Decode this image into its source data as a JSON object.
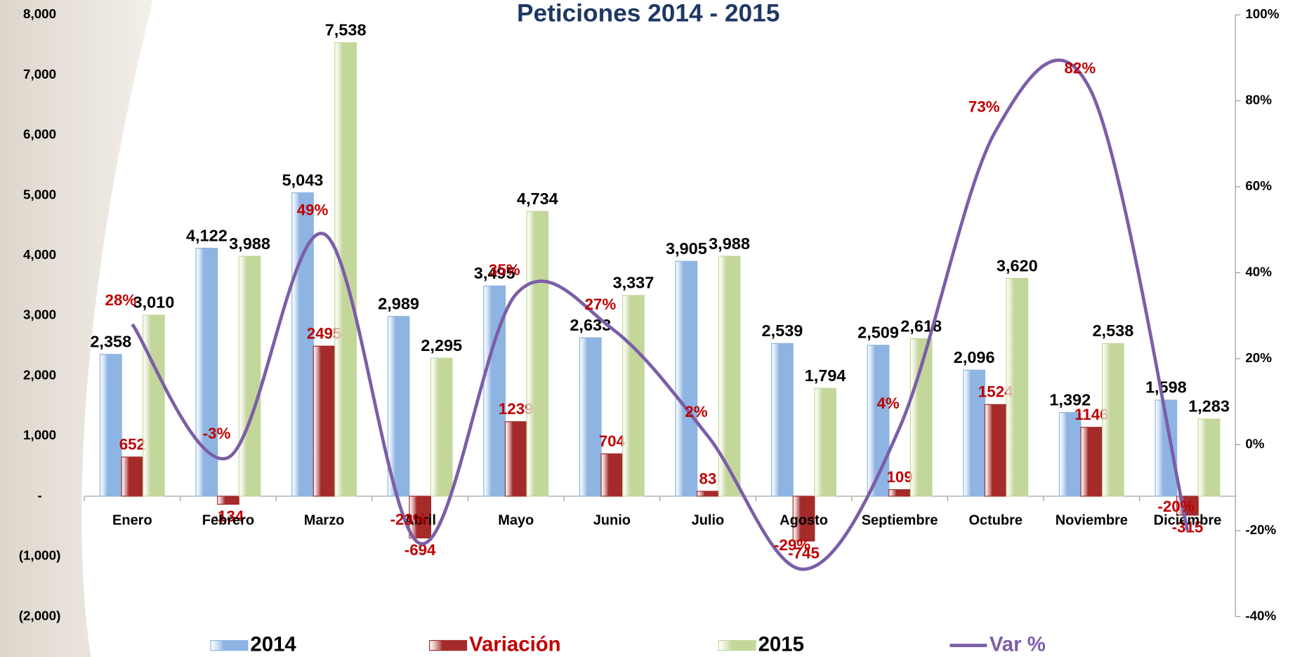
{
  "chart_data": {
    "type": "bar",
    "title": "Peticiones 2014 - 2015",
    "categories": [
      "Enero",
      "Febrero",
      "Marzo",
      "Abril",
      "Mayo",
      "Junio",
      "Julio",
      "Agosto",
      "Septiembre",
      "Octubre",
      "Noviembre",
      "Diciembre"
    ],
    "series": [
      {
        "name": "2014",
        "color": "#8db4e2",
        "values": [
          2358,
          4122,
          5043,
          2989,
          3495,
          2633,
          3905,
          2539,
          2509,
          2096,
          1392,
          1598
        ],
        "value_labels": [
          "2,358",
          "4,122",
          "5,043",
          "2,989",
          "3,495",
          "2,633",
          "3,905",
          "2,539",
          "2,509",
          "2,096",
          "1,392",
          "1,598"
        ]
      },
      {
        "name": "Variación",
        "color": "#a52a2a",
        "values": [
          652,
          -134,
          2495,
          -694,
          1239,
          704,
          83,
          -745,
          109,
          1524,
          1146,
          -315
        ]
      },
      {
        "name": "2015",
        "color": "#c4d79b",
        "values": [
          3010,
          3988,
          7538,
          2295,
          4734,
          3337,
          3988,
          1794,
          2618,
          3620,
          2538,
          1283
        ],
        "value_labels": [
          "3,010",
          "3,988",
          "7,538",
          "2,295",
          "4,734",
          "3,337",
          "3,988",
          "1,794",
          "2,618",
          "3,620",
          "2,538",
          "1,283"
        ]
      },
      {
        "name": "Var %",
        "color": "#7b5ea7",
        "type": "line",
        "axis": "y2",
        "values": [
          28,
          -3,
          49,
          -23,
          35,
          27,
          2,
          -29,
          4,
          73,
          82,
          -20
        ],
        "value_labels": [
          "28%",
          "-3%",
          "49%",
          "-23%",
          "35%",
          "27%",
          "2%",
          "-29%",
          "4%",
          "73%",
          "82%",
          "-20%"
        ]
      }
    ],
    "ylim": [
      -2000,
      8000
    ],
    "yticks": [
      {
        "value": -2000,
        "label": "(2,000)"
      },
      {
        "value": -1000,
        "label": "(1,000)"
      },
      {
        "value": 0,
        "label": "-"
      },
      {
        "value": 1000,
        "label": "1,000"
      },
      {
        "value": 2000,
        "label": "2,000"
      },
      {
        "value": 3000,
        "label": "3,000"
      },
      {
        "value": 4000,
        "label": "4,000"
      },
      {
        "value": 5000,
        "label": "5,000"
      },
      {
        "value": 6000,
        "label": "6,000"
      },
      {
        "value": 7000,
        "label": "7,000"
      },
      {
        "value": 8000,
        "label": "8,000"
      }
    ],
    "y2lim": [
      -40,
      100
    ],
    "y2ticks": [
      {
        "value": -40,
        "label": "-40%"
      },
      {
        "value": -20,
        "label": "-20%"
      },
      {
        "value": 0,
        "label": "0%"
      },
      {
        "value": 20,
        "label": "20%"
      },
      {
        "value": 40,
        "label": "40%"
      },
      {
        "value": 60,
        "label": "60%"
      },
      {
        "value": 80,
        "label": "80%"
      },
      {
        "value": 100,
        "label": "100%"
      }
    ],
    "legend": "bottom"
  }
}
